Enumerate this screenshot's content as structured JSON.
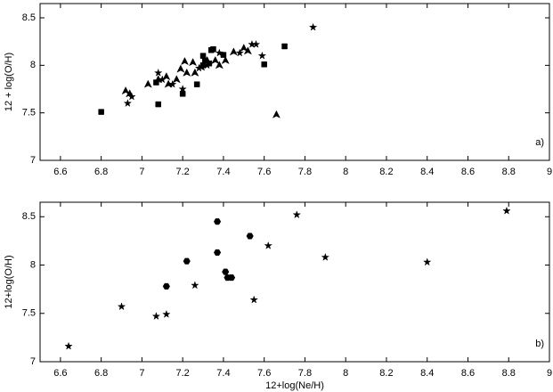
{
  "chart_data": [
    {
      "type": "scatter",
      "ylabel": "12 + log(O/H)",
      "annotation": "a)",
      "xlim": [
        6.5,
        9
      ],
      "ylim": [
        7,
        8.65
      ],
      "xticks": [
        6.6,
        6.8,
        7,
        7.2,
        7.4,
        7.6,
        7.8,
        8,
        8.2,
        8.4,
        8.6,
        8.8,
        9
      ],
      "yticks": [
        7,
        7.5,
        8,
        8.5
      ],
      "series": [
        {
          "marker": "square",
          "color": "#000000",
          "x": [
            6.8,
            7.08,
            7.07,
            7.2,
            7.27,
            7.3,
            7.3,
            7.33,
            7.35,
            7.4,
            7.6,
            7.7,
            7.34,
            7.31
          ],
          "y": [
            7.51,
            7.59,
            7.82,
            7.7,
            7.8,
            8.0,
            8.1,
            8.02,
            8.17,
            8.11,
            8.01,
            8.2,
            8.16,
            8.05
          ]
        },
        {
          "marker": "star",
          "color": "#000000",
          "x": [
            6.93,
            6.95,
            7.08,
            7.15,
            7.2,
            7.28,
            7.32,
            7.38,
            7.48,
            7.54,
            7.56,
            7.59,
            7.84,
            7.1
          ],
          "y": [
            7.6,
            7.67,
            7.92,
            7.8,
            7.75,
            7.97,
            8.0,
            8.13,
            8.13,
            8.22,
            8.22,
            8.1,
            8.4,
            7.85
          ]
        },
        {
          "marker": "triangle",
          "color": "#000000",
          "x": [
            6.92,
            6.94,
            7.03,
            7.08,
            7.12,
            7.13,
            7.17,
            7.21,
            7.22,
            7.25,
            7.26,
            7.29,
            7.32,
            7.36,
            7.38,
            7.41,
            7.45,
            7.5,
            7.52,
            7.66,
            7.19
          ],
          "y": [
            7.73,
            7.7,
            7.8,
            7.85,
            7.88,
            7.8,
            7.85,
            8.04,
            7.92,
            8.03,
            7.92,
            7.98,
            8.05,
            8.05,
            8.0,
            8.05,
            8.14,
            8.18,
            8.15,
            7.48,
            7.96
          ]
        }
      ]
    },
    {
      "type": "scatter",
      "xlabel": "12+log(Ne/H)",
      "ylabel": "12+log(O/H)",
      "annotation": "b)",
      "xlim": [
        6.5,
        9
      ],
      "ylim": [
        7,
        8.65
      ],
      "xticks": [
        6.6,
        6.8,
        7,
        7.2,
        7.4,
        7.6,
        7.8,
        8,
        8.2,
        8.4,
        8.6,
        8.8,
        9
      ],
      "yticks": [
        7,
        7.5,
        8,
        8.5
      ],
      "series": [
        {
          "marker": "hexagon",
          "color": "#000000",
          "x": [
            7.12,
            7.22,
            7.37,
            7.37,
            7.41,
            7.42,
            7.44,
            7.53
          ],
          "y": [
            7.78,
            8.04,
            8.45,
            8.13,
            7.93,
            7.87,
            7.87,
            8.3
          ]
        },
        {
          "marker": "star",
          "color": "#000000",
          "x": [
            6.64,
            6.9,
            7.07,
            7.12,
            7.26,
            7.55,
            7.62,
            7.76,
            7.9,
            8.4,
            8.79
          ],
          "y": [
            7.16,
            7.57,
            7.47,
            7.49,
            7.79,
            7.64,
            8.2,
            8.52,
            8.08,
            8.03,
            8.56
          ]
        }
      ]
    }
  ]
}
